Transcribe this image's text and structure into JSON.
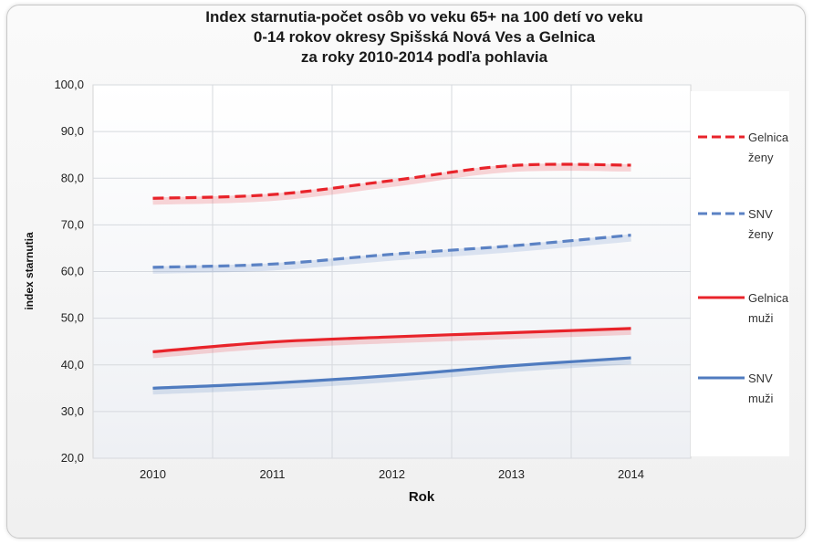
{
  "chart_data": {
    "type": "line",
    "title_lines": [
      "Index starnutia-počet osôb vo veku 65+ na 100 detí vo veku",
      "0-14 rokov okresy Spišská Nová Ves a Gelnica",
      "za roky 2010-2014 podľa pohlavia"
    ],
    "xlabel": "Rok",
    "ylabel": "index starnutia",
    "categories": [
      "2010",
      "2011",
      "2012",
      "2013",
      "2014"
    ],
    "y_ticks": [
      "20,0",
      "30,0",
      "40,0",
      "50,0",
      "60,0",
      "70,0",
      "80,0",
      "90,0",
      "100,0"
    ],
    "ylim": [
      20,
      100
    ],
    "grid": true,
    "legend_position": "right",
    "series": [
      {
        "name_lines": [
          "Gelnica",
          "ženy"
        ],
        "values": [
          75.7,
          76.5,
          79.5,
          82.7,
          82.8
        ],
        "color": "#e8232a",
        "dashed": true
      },
      {
        "name_lines": [
          "SNV",
          "ženy"
        ],
        "values": [
          60.9,
          61.6,
          63.7,
          65.5,
          67.8
        ],
        "color": "#5b82c4",
        "dashed": true
      },
      {
        "name_lines": [
          "Gelnica",
          "muži"
        ],
        "values": [
          42.8,
          44.9,
          46.0,
          46.9,
          47.8
        ],
        "color": "#e8232a",
        "dashed": false
      },
      {
        "name_lines": [
          "SNV",
          "muži"
        ],
        "values": [
          35.0,
          36.1,
          37.7,
          39.8,
          41.5
        ],
        "color": "#4f7bbf",
        "dashed": false
      }
    ]
  }
}
